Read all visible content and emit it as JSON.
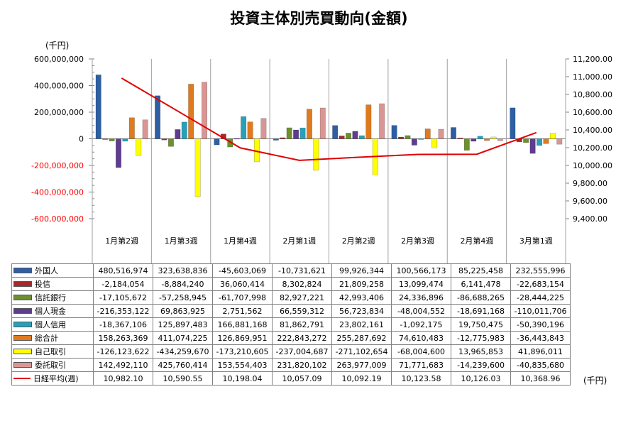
{
  "chart_data": {
    "type": "bar",
    "title": "投資主体別売買動向(金額)",
    "y_unit_left": "(千円)",
    "y_unit_right": "(千円)",
    "categories": [
      "1月第2週",
      "1月第3週",
      "1月第4週",
      "2月第1週",
      "2月第2週",
      "2月第3週",
      "2月第4週",
      "3月第1週"
    ],
    "ylim_left": [
      -600000000,
      600000000
    ],
    "yticks_left": [
      "600,000,000",
      "400,000,000",
      "200,000,000",
      "0",
      "-200,000,000",
      "-400,000,000",
      "-600,000,000"
    ],
    "ylim_right": [
      9400,
      11200
    ],
    "yticks_right": [
      "11,200.00",
      "11,000.00",
      "10,800.00",
      "10,600.00",
      "10,400.00",
      "10,200.00",
      "10,000.00",
      "9,800.00",
      "9,600.00",
      "9,400.00"
    ],
    "series": [
      {
        "name": "外国人",
        "color": "#2e5fa3",
        "values": [
          480516974,
          323638836,
          -45603069,
          -10731621,
          99926344,
          100566173,
          85225458,
          232555996
        ],
        "labels": [
          "480,516,974",
          "323,638,836",
          "-45,603,069",
          "-10,731,621",
          "99,926,344",
          "100,566,173",
          "85,225,458",
          "232,555,996"
        ]
      },
      {
        "name": "投信",
        "color": "#a52a2a",
        "values": [
          -2184054,
          -8884240,
          36060414,
          8302824,
          21809258,
          13099474,
          6141478,
          -22683154
        ],
        "labels": [
          "-2,184,054",
          "-8,884,240",
          "36,060,414",
          "8,302,824",
          "21,809,258",
          "13,099,474",
          "6,141,478",
          "-22,683,154"
        ]
      },
      {
        "name": "信託銀行",
        "color": "#6d8f2e",
        "values": [
          -17105672,
          -57258945,
          -61707998,
          82927221,
          42993406,
          24336896,
          -86688265,
          -28444225
        ],
        "labels": [
          "-17,105,672",
          "-57,258,945",
          "-61,707,998",
          "82,927,221",
          "42,993,406",
          "24,336,896",
          "-86,688,265",
          "-28,444,225"
        ]
      },
      {
        "name": "個人現金",
        "color": "#5e3c8f",
        "values": [
          -216353122,
          69863925,
          2751562,
          66559312,
          56723834,
          -48004552,
          -18691168,
          -110011706
        ],
        "labels": [
          "-216,353,122",
          "69,863,925",
          "2,751,562",
          "66,559,312",
          "56,723,834",
          "-48,004,552",
          "-18,691,168",
          "-110,011,706"
        ]
      },
      {
        "name": "個人信用",
        "color": "#2aa0b8",
        "values": [
          -18367106,
          125897483,
          166881168,
          81862791,
          23802161,
          -1092175,
          19750475,
          -50390196
        ],
        "labels": [
          "-18,367,106",
          "125,897,483",
          "166,881,168",
          "81,862,791",
          "23,802,161",
          "-1,092,175",
          "19,750,475",
          "-50,390,196"
        ]
      },
      {
        "name": "総合計",
        "color": "#e07a1f",
        "values": [
          158263369,
          411074225,
          126869951,
          222843272,
          255287692,
          74610483,
          -12775983,
          -36443843
        ],
        "labels": [
          "158,263,369",
          "411,074,225",
          "126,869,951",
          "222,843,272",
          "255,287,692",
          "74,610,483",
          "-12,775,983",
          "-36,443,843"
        ]
      },
      {
        "name": "自己取引",
        "color": "#ffff00",
        "values": [
          -126123622,
          -434259670,
          -173210605,
          -237004687,
          -271102654,
          -68004600,
          13965853,
          41896011
        ],
        "labels": [
          "-126,123,622",
          "-434,259,670",
          "-173,210,605",
          "-237,004,687",
          "-271,102,654",
          "-68,004,600",
          "13,965,853",
          "41,896,011"
        ]
      },
      {
        "name": "委託取引",
        "color": "#d99694",
        "values": [
          142492110,
          425760414,
          153554403,
          231820102,
          263977009,
          71771683,
          -14239600,
          -40835680
        ],
        "labels": [
          "142,492,110",
          "425,760,414",
          "153,554,403",
          "231,820,102",
          "263,977,009",
          "71,771,683",
          "-14,239,600",
          "-40,835,680"
        ]
      }
    ],
    "line_series": {
      "name": "日経平均(週)",
      "color": "#e00000",
      "axis": "right",
      "values": [
        10982.1,
        10590.55,
        10198.04,
        10057.09,
        10092.19,
        10123.58,
        10126.03,
        10368.96
      ],
      "labels": [
        "10,982.10",
        "10,590.55",
        "10,198.04",
        "10,057.09",
        "10,092.19",
        "10,123.58",
        "10,126.03",
        "10,368.96"
      ]
    },
    "grid": "vertical category separators",
    "legend": "data table"
  }
}
